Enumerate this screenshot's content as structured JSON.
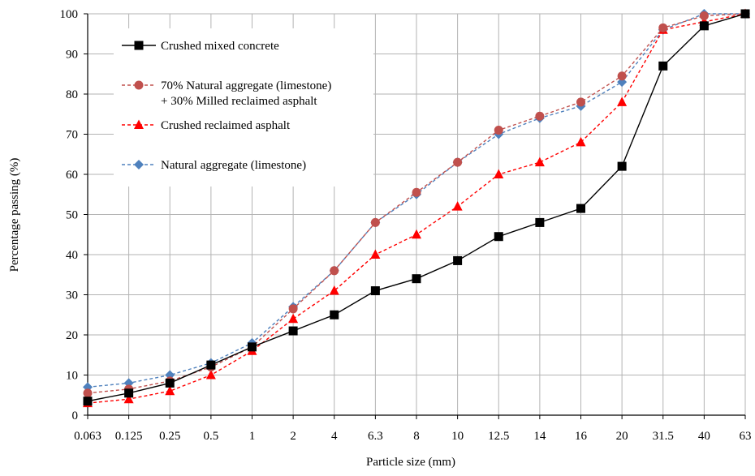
{
  "chart_data": {
    "type": "line",
    "title": "",
    "xlabel": "Particle size (mm)",
    "ylabel": "Percentage passing (%)",
    "categories": [
      "0.063",
      "0.125",
      "0.25",
      "0.5",
      "1",
      "2",
      "4",
      "6.3",
      "8",
      "10",
      "12.5",
      "14",
      "16",
      "20",
      "31.5",
      "40",
      "63"
    ],
    "yticks": [
      "0",
      "10",
      "20",
      "30",
      "40",
      "50",
      "60",
      "70",
      "80",
      "90",
      "100"
    ],
    "ylim": [
      0,
      100
    ],
    "grid": true,
    "legend_position": "top-left",
    "series": [
      {
        "name": "Crushed mixed concrete",
        "color": "#000000",
        "marker": "square",
        "dash": false,
        "values": [
          3.5,
          5.5,
          8,
          12.5,
          17,
          21,
          25,
          31,
          34,
          38.5,
          44.5,
          48,
          51.5,
          62,
          87,
          97,
          100
        ]
      },
      {
        "name": "70% Natural aggregate (limestone)",
        "name_line2": "+ 30% Milled reclaimed asphalt",
        "color": "#c0504d",
        "marker": "circle",
        "dash": true,
        "values": [
          5.5,
          6.5,
          8.5,
          12,
          17,
          26.5,
          36,
          48,
          55.5,
          63,
          71,
          74.5,
          78,
          84.5,
          96.5,
          99.5,
          100
        ]
      },
      {
        "name": "Crushed reclaimed asphalt",
        "color": "#ff0000",
        "marker": "triangle",
        "dash": true,
        "values": [
          3,
          4,
          6,
          10,
          16,
          24,
          31,
          40,
          45,
          52,
          60,
          63,
          68,
          78,
          96,
          98,
          100
        ]
      },
      {
        "name": "Natural aggregate (limestone)",
        "color": "#4f81bd",
        "marker": "diamond",
        "dash": true,
        "values": [
          7,
          8,
          10,
          13,
          18,
          27,
          36,
          48,
          55,
          63,
          70,
          74,
          77,
          83,
          96,
          100,
          100
        ]
      }
    ]
  }
}
